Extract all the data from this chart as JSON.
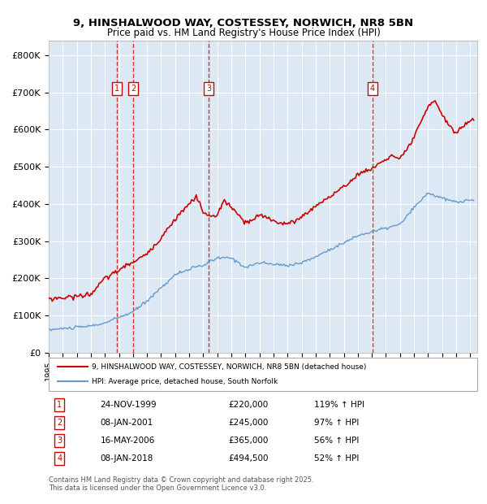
{
  "title_line1": "9, HINSHALWOOD WAY, COSTESSEY, NORWICH, NR8 5BN",
  "title_line2": "Price paid vs. HM Land Registry's House Price Index (HPI)",
  "ylabel": "",
  "background_color": "#dce9f5",
  "plot_bg_color": "#dce9f5",
  "grid_color": "white",
  "sale_color": "#cc0000",
  "hpi_color": "#6699cc",
  "yticks": [
    0,
    100000,
    200000,
    300000,
    400000,
    500000,
    600000,
    700000,
    800000
  ],
  "ytick_labels": [
    "£0",
    "£100K",
    "£200K",
    "£300K",
    "£400K",
    "£500K",
    "£600K",
    "£700K",
    "£800K"
  ],
  "ymax": 840000,
  "sales": [
    {
      "date": "1999-11-24",
      "price": 220000,
      "label": "1"
    },
    {
      "date": "2001-01-08",
      "price": 245000,
      "label": "2"
    },
    {
      "date": "2006-05-16",
      "price": 365000,
      "label": "3"
    },
    {
      "date": "2018-01-08",
      "price": 494500,
      "label": "4"
    }
  ],
  "legend_sale_label": "9, HINSHALWOOD WAY, COSTESSEY, NORWICH, NR8 5BN (detached house)",
  "legend_hpi_label": "HPI: Average price, detached house, South Norfolk",
  "table_rows": [
    {
      "num": "1",
      "date": "24-NOV-1999",
      "price": "£220,000",
      "hpi": "119% ↑ HPI"
    },
    {
      "num": "2",
      "date": "08-JAN-2001",
      "price": "£245,000",
      "hpi": "97% ↑ HPI"
    },
    {
      "num": "3",
      "date": "16-MAY-2006",
      "price": "£365,000",
      "hpi": "56% ↑ HPI"
    },
    {
      "num": "4",
      "date": "08-JAN-2018",
      "price": "£494,500",
      "hpi": "52% ↑ HPI"
    }
  ],
  "footnote": "Contains HM Land Registry data © Crown copyright and database right 2025.\nThis data is licensed under the Open Government Licence v3.0."
}
